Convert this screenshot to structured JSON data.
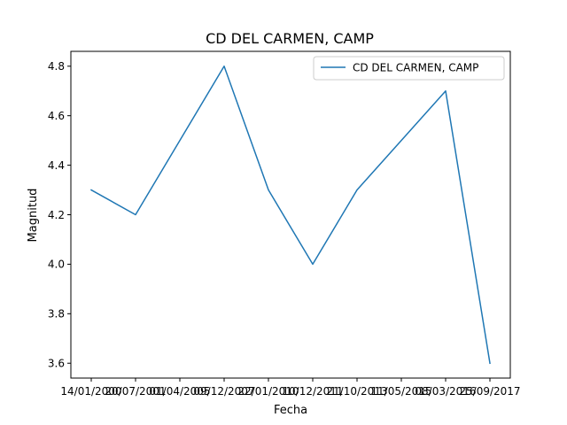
{
  "chart_data": {
    "type": "line",
    "title": "CD DEL CARMEN, CAMP",
    "xlabel": "Fecha",
    "ylabel": "Magnitud",
    "categories": [
      "14/01/2000",
      "20/07/2001",
      "01/04/2005",
      "09/12/2007",
      "22/01/2010",
      "10/12/2011",
      "21/10/2013",
      "11/05/2015",
      "08/03/2016",
      "25/09/2017"
    ],
    "x_tick_labels": [
      "14/01/2000",
      "20/07/2001",
      "01/04/2005",
      "09/12/2007",
      "22/01/2010",
      "10/12/2011",
      "21/10/2013",
      "11/05/2015",
      "08/03/2016",
      "25/09/2017"
    ],
    "series": [
      {
        "name": "CD DEL CARMEN, CAMP",
        "color": "#1f77b4",
        "values": [
          4.3,
          4.2,
          4.5,
          4.8,
          4.3,
          4.0,
          4.3,
          4.5,
          4.7,
          3.6
        ]
      }
    ],
    "yticks": [
      "3.6",
      "3.8",
      "4.0",
      "4.2",
      "4.4",
      "4.6",
      "4.8"
    ],
    "ylim": [
      3.54,
      4.86
    ],
    "grid": false,
    "legend_position": "upper right"
  }
}
